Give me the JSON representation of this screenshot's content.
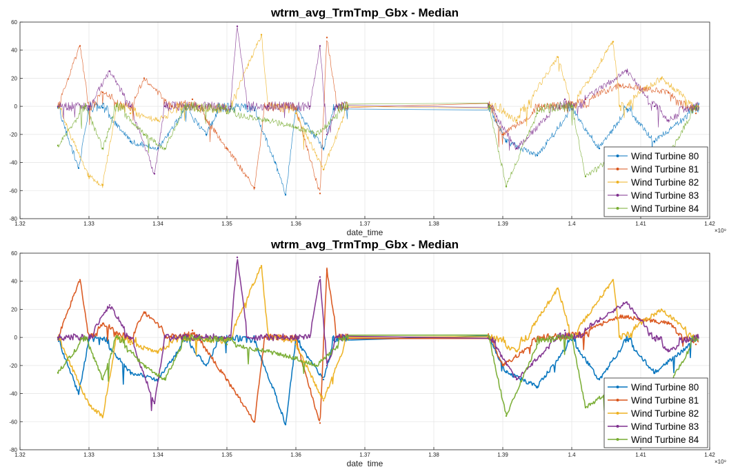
{
  "chart_data": [
    {
      "type": "line",
      "title": "wtrm_avg_TrmTmp_Gbx - Median",
      "xlabel": "date_time",
      "x_exponent": "×10⁹",
      "xlim": [
        1.32,
        1.42
      ],
      "ylim": [
        -80,
        60
      ],
      "x_ticks": [
        "1.32",
        "1.33",
        "1.34",
        "1.35",
        "1.36",
        "1.37",
        "1.38",
        "1.39",
        "1.4",
        "1.41",
        "1.42"
      ],
      "y_ticks": [
        "-80",
        "-60",
        "-40",
        "-20",
        "0",
        "20",
        "40",
        "60"
      ],
      "grid": true,
      "legend_position": "bottom-right",
      "line_style": "thin",
      "series": [
        {
          "name": "Wind Turbine 80",
          "color": "#0072BD",
          "x": [
            1.3255,
            1.3285,
            1.33,
            1.332,
            1.336,
            1.34,
            1.344,
            1.347,
            1.349,
            1.3505,
            1.354,
            1.357,
            1.3585,
            1.36,
            1.364,
            1.3655,
            1.3675,
            1.388,
            1.3905,
            1.395,
            1.4,
            1.404,
            1.408,
            1.412,
            1.418
          ],
          "y": [
            -1,
            -44,
            -2,
            -1,
            -25,
            -30,
            -2,
            -20,
            -1,
            -2,
            -3,
            -40,
            -63,
            -2,
            -30,
            -2,
            -1,
            -1,
            -25,
            -35,
            -2,
            -30,
            -2,
            -25,
            -2
          ]
        },
        {
          "name": "Wind Turbine 81",
          "color": "#D95319",
          "x": [
            1.3255,
            1.3287,
            1.33,
            1.332,
            1.336,
            1.338,
            1.342,
            1.345,
            1.35,
            1.354,
            1.3555,
            1.36,
            1.3635,
            1.3645,
            1.366,
            1.3675,
            1.388,
            1.39,
            1.396,
            1.402,
            1.407,
            1.414,
            1.418
          ],
          "y": [
            0,
            43,
            0,
            10,
            0,
            20,
            0,
            5,
            -30,
            -58,
            0,
            -2,
            -62,
            49,
            0,
            0,
            1,
            -20,
            0,
            5,
            15,
            10,
            -5
          ]
        },
        {
          "name": "Wind Turbine 82",
          "color": "#EDB120",
          "x": [
            1.3255,
            1.33,
            1.332,
            1.334,
            1.336,
            1.34,
            1.344,
            1.35,
            1.355,
            1.356,
            1.36,
            1.364,
            1.3675,
            1.388,
            1.392,
            1.398,
            1.4,
            1.406,
            1.407,
            1.413,
            1.418
          ],
          "y": [
            0,
            -50,
            -56,
            0,
            -5,
            -10,
            0,
            -5,
            51,
            0,
            -5,
            -45,
            0,
            0,
            -10,
            35,
            0,
            46,
            0,
            20,
            0
          ]
        },
        {
          "name": "Wind Turbine 83",
          "color": "#7E2F8E",
          "x": [
            1.3255,
            1.33,
            1.333,
            1.336,
            1.3395,
            1.341,
            1.346,
            1.3505,
            1.3515,
            1.353,
            1.356,
            1.362,
            1.3635,
            1.3645,
            1.366,
            1.3675,
            1.388,
            1.392,
            1.399,
            1.4,
            1.408,
            1.412,
            1.414,
            1.418
          ],
          "y": [
            0,
            0,
            25,
            0,
            -48,
            0,
            0,
            0,
            57,
            0,
            0,
            0,
            43,
            -20,
            0,
            0,
            1,
            -30,
            5,
            0,
            25,
            0,
            -10,
            0
          ]
        },
        {
          "name": "Wind Turbine 84",
          "color": "#77AC30",
          "x": [
            1.3255,
            1.3295,
            1.332,
            1.334,
            1.338,
            1.341,
            1.344,
            1.35,
            1.356,
            1.36,
            1.363,
            1.3675,
            1.388,
            1.3905,
            1.395,
            1.4,
            1.402,
            1.405,
            1.408,
            1.411,
            1.414,
            1.418
          ],
          "y": [
            -28,
            0,
            -30,
            0,
            -20,
            -30,
            0,
            -5,
            -10,
            -15,
            -20,
            0,
            0,
            -57,
            -5,
            0,
            -50,
            -40,
            -48,
            -45,
            -35,
            0
          ]
        }
      ]
    },
    {
      "type": "line",
      "title": "wtrm_avg_TrmTmp_Gbx - Median",
      "xlabel": "date_time",
      "x_exponent": "×10⁹",
      "xlim": [
        1.32,
        1.42
      ],
      "ylim": [
        -80,
        60
      ],
      "x_ticks": [
        "1.32",
        "1.33",
        "1.34",
        "1.35",
        "1.36",
        "1.37",
        "1.38",
        "1.39",
        "1.4",
        "1.41",
        "1.42"
      ],
      "y_ticks": [
        "-80",
        "-60",
        "-40",
        "-20",
        "0",
        "20",
        "40",
        "60"
      ],
      "grid": true,
      "legend_position": "bottom-right",
      "line_style": "thick",
      "series": [
        {
          "name": "Wind Turbine 80",
          "color": "#0072BD",
          "x": [
            1.3255,
            1.3285,
            1.33,
            1.332,
            1.336,
            1.34,
            1.344,
            1.347,
            1.349,
            1.3505,
            1.354,
            1.357,
            1.3585,
            1.36,
            1.364,
            1.3655,
            1.3675,
            1.388,
            1.3905,
            1.395,
            1.4,
            1.404,
            1.408,
            1.412,
            1.418
          ],
          "y": [
            -1,
            -40,
            -2,
            -1,
            -25,
            -30,
            -2,
            -20,
            -1,
            -2,
            -3,
            -40,
            -62,
            -2,
            -30,
            -2,
            -1,
            -1,
            -25,
            -35,
            -2,
            -30,
            -2,
            -25,
            -2
          ]
        },
        {
          "name": "Wind Turbine 81",
          "color": "#D95319",
          "x": [
            1.3255,
            1.3287,
            1.33,
            1.332,
            1.336,
            1.338,
            1.342,
            1.345,
            1.35,
            1.354,
            1.3555,
            1.36,
            1.3635,
            1.3645,
            1.366,
            1.3675,
            1.388,
            1.39,
            1.396,
            1.402,
            1.407,
            1.414,
            1.418
          ],
          "y": [
            0,
            41,
            0,
            10,
            0,
            18,
            0,
            5,
            -30,
            -60,
            0,
            -2,
            -61,
            48,
            0,
            0,
            1,
            -20,
            0,
            5,
            15,
            10,
            -5
          ]
        },
        {
          "name": "Wind Turbine 82",
          "color": "#EDB120",
          "x": [
            1.3255,
            1.33,
            1.332,
            1.334,
            1.336,
            1.34,
            1.344,
            1.35,
            1.355,
            1.356,
            1.36,
            1.364,
            1.3675,
            1.388,
            1.392,
            1.398,
            1.4,
            1.406,
            1.407,
            1.413,
            1.418
          ],
          "y": [
            0,
            -48,
            -56,
            0,
            -5,
            -10,
            0,
            -5,
            51,
            0,
            -5,
            -45,
            0,
            0,
            -10,
            35,
            0,
            41,
            0,
            20,
            0
          ]
        },
        {
          "name": "Wind Turbine 83",
          "color": "#7E2F8E",
          "x": [
            1.3255,
            1.33,
            1.333,
            1.336,
            1.3395,
            1.341,
            1.346,
            1.3505,
            1.3515,
            1.353,
            1.356,
            1.362,
            1.3635,
            1.3645,
            1.366,
            1.3675,
            1.388,
            1.392,
            1.399,
            1.4,
            1.408,
            1.412,
            1.414,
            1.418
          ],
          "y": [
            0,
            0,
            23,
            0,
            -47,
            0,
            0,
            0,
            57,
            0,
            0,
            0,
            43,
            -20,
            0,
            0,
            1,
            -30,
            5,
            0,
            25,
            0,
            -10,
            0
          ]
        },
        {
          "name": "Wind Turbine 84",
          "color": "#77AC30",
          "x": [
            1.3255,
            1.3295,
            1.332,
            1.334,
            1.338,
            1.341,
            1.344,
            1.35,
            1.356,
            1.36,
            1.363,
            1.3675,
            1.388,
            1.3905,
            1.395,
            1.4,
            1.402,
            1.405,
            1.408,
            1.411,
            1.414,
            1.418
          ],
          "y": [
            -25,
            0,
            -30,
            0,
            -20,
            -30,
            0,
            -5,
            -10,
            -15,
            -20,
            0,
            0,
            -56,
            -5,
            0,
            -50,
            -40,
            -48,
            -45,
            -35,
            0
          ]
        }
      ]
    }
  ]
}
